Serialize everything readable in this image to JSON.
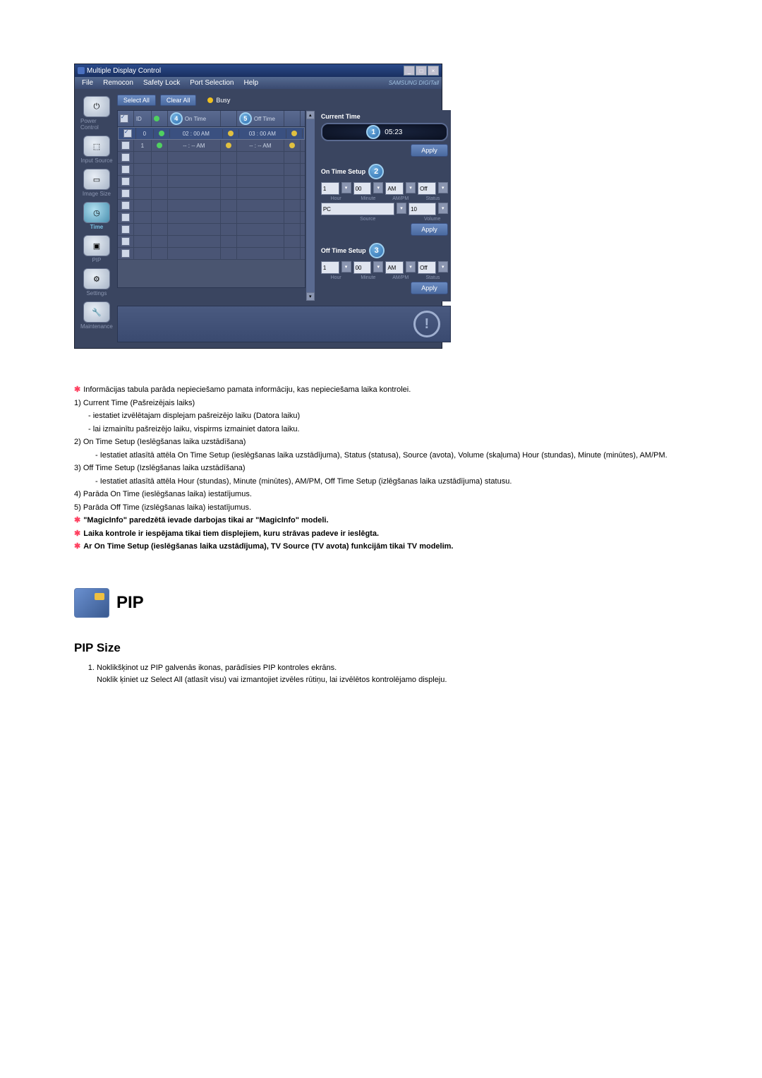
{
  "app": {
    "title": "Multiple Display Control"
  },
  "menu": [
    "File",
    "Remocon",
    "Safety Lock",
    "Port Selection",
    "Help"
  ],
  "brand": "SAMSUNG DIGITall",
  "sidebar": [
    {
      "label": "Power Control"
    },
    {
      "label": "Input Source"
    },
    {
      "label": "Image Size"
    },
    {
      "label": "Time",
      "active": true
    },
    {
      "label": "PIP"
    },
    {
      "label": "Settings"
    },
    {
      "label": "Maintenance"
    }
  ],
  "toolbar": {
    "selectAll": "Select All",
    "clearAll": "Clear All",
    "busy": "Busy"
  },
  "gridHdr": {
    "id": "ID",
    "onTime": "On Time",
    "offTime": "Off Time"
  },
  "gridRows": [
    {
      "sel": true,
      "id": "0",
      "on": "02 : 00  AM",
      "off": "03 : 00  AM"
    },
    {
      "sel": false,
      "id": "1",
      "on": "-- : --  AM",
      "off": "-- : --  AM"
    }
  ],
  "blankRows": 9,
  "panel": {
    "currentTimeLbl": "Current Time",
    "clock": "05:23",
    "apply": "Apply",
    "onSetupLbl": "On Time Setup",
    "offSetupLbl": "Off Time Setup",
    "hour": "1",
    "minute": "00",
    "ampm": "AM",
    "status": "Off",
    "source": "PC",
    "volume": "10",
    "subHour": "Hour",
    "subMinute": "Minute",
    "subAMPM": "AM/PM",
    "subStatus": "Status",
    "subSource": "Source",
    "subVolume": "Volume"
  },
  "badges": {
    "b1": "1",
    "b2": "2",
    "b3": "3",
    "b4": "4",
    "b5": "5"
  },
  "doc": {
    "intro": "Informācijas tabula parāda nepieciešamo pamata informāciju, kas nepieciešama laika kontrolei.",
    "i1": "Current Time (Pašreizējais laiks)",
    "i1a": "- iestatiet izvēlētajam displejam pašreizējo laiku (Datora laiku)",
    "i1b": "- lai izmainītu pašreizējo laiku, vispirms izmainiet datora laiku.",
    "i2": "On Time Setup (Ieslēgšanas laika uzstādīšana)",
    "i2a": "Iestatiet atlasītā attēla On Time Setup (ieslēgšanas laika uzstādījuma), Status (statusa), Source (avota), Volume (skaļuma) Hour (stundas), Minute (minūtes), AM/PM.",
    "i3": "Off Time Setup (Izslēgšanas laika uzstādīšana)",
    "i3a": "Iestatiet atlasītā attēla Hour (stundas), Minute (minūtes), AM/PM, Off Time Setup (izlēgšanas laika uzstādījuma) statusu.",
    "i4": "Parāda On Time (ieslēgšanas laika) iestatījumus.",
    "i5": "Parāda Off Time (izslēgšanas laika) iestatījumus.",
    "n1": "\"MagicInfo\" paredzētā ievade darbojas tikai ar \"MagicInfo\" modeli.",
    "n2": "Laika kontrole ir iespējama tikai tiem displejiem, kuru strāvas padeve ir ieslēgta.",
    "n3": "Ar On Time Setup (ieslēgšanas laika uzstādījuma), TV Source (TV avota) funkcijām tikai TV modelim.",
    "pip": "PIP",
    "pipSize": "PIP Size",
    "p1": "Noklikšķinot uz PIP galvenās ikonas, parādīsies PIP kontroles ekrāns.",
    "p1b": "Noklik     ķiniet uz Select All (atlasīt visu) vai izmantojiet izvēles rūtiņu, lai izvēlētos kontrolējamo displeju."
  }
}
